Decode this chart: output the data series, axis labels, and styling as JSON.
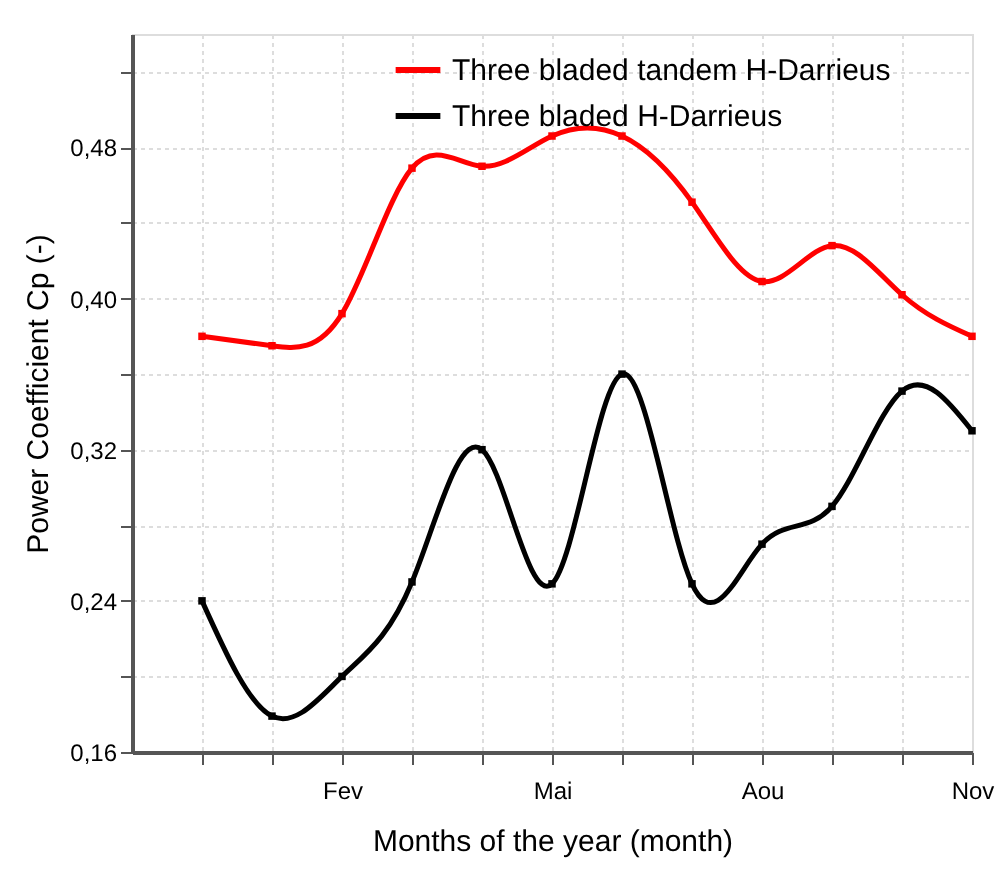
{
  "chart_data": {
    "type": "line",
    "xlabel": "Months of the year (month)",
    "ylabel": "Power Coefficient Cp (-)",
    "categories": [
      null,
      null,
      "Fev",
      null,
      null,
      "Mai",
      null,
      null,
      "Aou",
      null,
      null,
      "Nov"
    ],
    "series": [
      {
        "name": "Three bladed tandem H-Darrieus",
        "color": "#ff0000",
        "values": [
          0.38,
          0.375,
          0.392,
          0.469,
          0.47,
          0.486,
          0.486,
          0.451,
          0.409,
          0.428,
          0.402,
          0.38
        ]
      },
      {
        "name": "Three bladed H-Darrieus",
        "color": "#000000",
        "values": [
          0.24,
          0.179,
          0.2,
          0.25,
          0.32,
          0.249,
          0.36,
          0.249,
          0.27,
          0.29,
          0.351,
          0.33
        ]
      }
    ],
    "ylim": [
      0.16,
      0.54
    ],
    "yticks": [
      {
        "value": 0.16,
        "label": "0,16"
      },
      {
        "value": 0.2,
        "label": null
      },
      {
        "value": 0.24,
        "label": "0,24"
      },
      {
        "value": 0.28,
        "label": null
      },
      {
        "value": 0.32,
        "label": "0,32"
      },
      {
        "value": 0.36,
        "label": null
      },
      {
        "value": 0.4,
        "label": "0,40"
      },
      {
        "value": 0.44,
        "label": null
      },
      {
        "value": 0.48,
        "label": "0,48"
      },
      {
        "value": 0.52,
        "label": null
      }
    ],
    "grid": true,
    "legend": "top",
    "marker": "square",
    "line_style": "solid"
  }
}
